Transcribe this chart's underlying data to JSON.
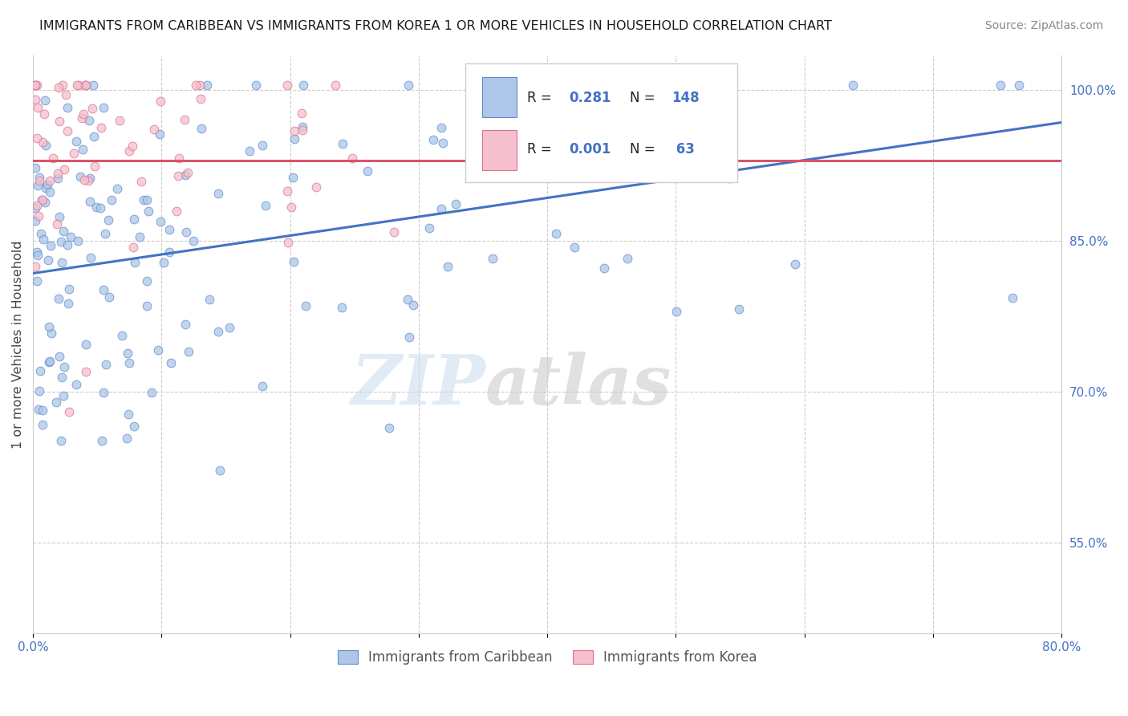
{
  "title": "IMMIGRANTS FROM CARIBBEAN VS IMMIGRANTS FROM KOREA 1 OR MORE VEHICLES IN HOUSEHOLD CORRELATION CHART",
  "source": "Source: ZipAtlas.com",
  "ylabel": "1 or more Vehicles in Household",
  "x_min": 0.0,
  "x_max": 0.8,
  "y_min": 0.46,
  "y_max": 1.035,
  "x_ticks": [
    0.0,
    0.1,
    0.2,
    0.3,
    0.4,
    0.5,
    0.6,
    0.7,
    0.8
  ],
  "x_tick_labels": [
    "0.0%",
    "",
    "",
    "",
    "",
    "",
    "",
    "",
    "80.0%"
  ],
  "y_tick_labels_right": [
    "55.0%",
    "70.0%",
    "85.0%",
    "100.0%"
  ],
  "y_tick_values_right": [
    0.55,
    0.7,
    0.85,
    1.0
  ],
  "blue_R": 0.281,
  "blue_N": 148,
  "pink_R": 0.001,
  "pink_N": 63,
  "blue_color": "#aec6e8",
  "pink_color": "#f5bfcd",
  "blue_edge_color": "#5b8fc9",
  "pink_edge_color": "#d9748a",
  "blue_line_color": "#4472c4",
  "pink_line_color": "#d9546a",
  "legend_label_blue": "Immigrants from Caribbean",
  "legend_label_pink": "Immigrants from Korea",
  "watermark_zip": "ZIP",
  "watermark_atlas": "atlas",
  "blue_line_y0": 0.818,
  "blue_line_y1": 0.968,
  "pink_line_y0": 0.93,
  "pink_line_y1": 0.93
}
